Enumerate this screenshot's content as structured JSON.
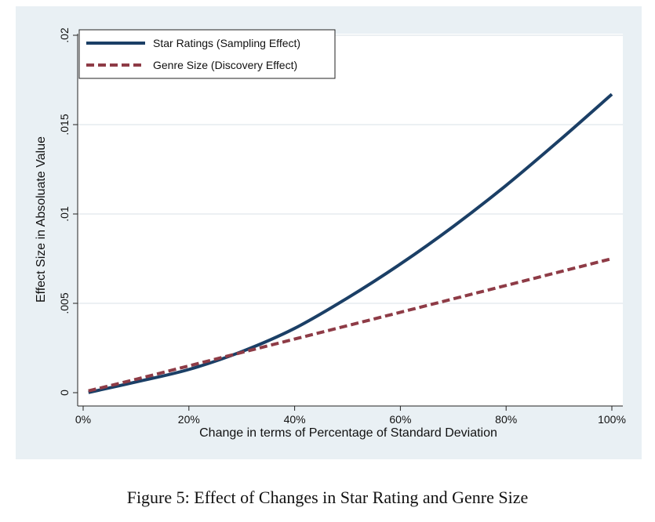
{
  "caption": "Figure 5: Effect of Changes in Star Rating and Genre Size",
  "chart_data": {
    "type": "line",
    "xlabel": "Change in terms of Percentage of Standard Deviation",
    "ylabel": "Effect Size in Absoluate Value",
    "xlim": [
      0,
      100
    ],
    "ylim": [
      0,
      0.02
    ],
    "x_ticks": [
      {
        "value": 0,
        "label": "0%"
      },
      {
        "value": 20,
        "label": "20%"
      },
      {
        "value": 40,
        "label": "40%"
      },
      {
        "value": 60,
        "label": "60%"
      },
      {
        "value": 80,
        "label": "80%"
      },
      {
        "value": 100,
        "label": "100%"
      }
    ],
    "y_ticks": [
      {
        "value": 0,
        "label": "0"
      },
      {
        "value": 0.005,
        "label": ".005"
      },
      {
        "value": 0.01,
        "label": ".01"
      },
      {
        "value": 0.015,
        "label": ".015"
      },
      {
        "value": 0.02,
        "label": ".02"
      }
    ],
    "grid": true,
    "legend_position": "top-left",
    "series": [
      {
        "name": "Star Ratings (Sampling Effect)",
        "style": "solid",
        "color": "#1b3f66",
        "x": [
          1,
          10,
          20,
          30,
          40,
          50,
          60,
          70,
          80,
          90,
          100
        ],
        "y": [
          1e-05,
          0.0006,
          0.0013,
          0.0023,
          0.0036,
          0.0053,
          0.0072,
          0.0093,
          0.0116,
          0.0141,
          0.0167
        ]
      },
      {
        "name": "Genre Size (Discovery Effect)",
        "style": "dashed",
        "color": "#8e3b46",
        "x": [
          1,
          10,
          20,
          30,
          40,
          50,
          60,
          70,
          80,
          90,
          100
        ],
        "y": [
          0.0001,
          0.00075,
          0.0015,
          0.00225,
          0.003,
          0.00375,
          0.0045,
          0.00525,
          0.006,
          0.00675,
          0.0075
        ]
      }
    ]
  }
}
